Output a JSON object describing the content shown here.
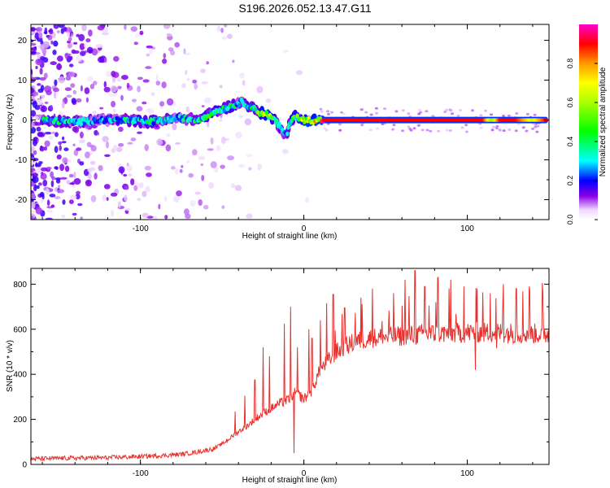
{
  "title": "S196.2026.052.13.47.G11",
  "chart_data": [
    {
      "type": "heatmap",
      "xlabel": "Height of straight line (km)",
      "ylabel": "Frequency (Hz)",
      "xlim": [
        -167,
        150
      ],
      "ylim": [
        -25,
        24
      ],
      "xticks": [
        -100,
        0,
        100
      ],
      "yticks": [
        -20,
        -10,
        0,
        10,
        20
      ],
      "colorbar": {
        "label": "Normalized spectral amplitude",
        "range": [
          0,
          1
        ],
        "ticks": [
          "0.0",
          "0.2",
          "0.4",
          "0.6",
          "0.8"
        ],
        "tick_values": [
          0,
          0.2,
          0.4,
          0.6,
          0.8
        ]
      },
      "ridge": [
        {
          "x": -160,
          "f": 0.0,
          "a": 0.35
        },
        {
          "x": -140,
          "f": -0.5,
          "a": 0.3
        },
        {
          "x": -125,
          "f": 0.0,
          "a": 0.25
        },
        {
          "x": -110,
          "f": 0.0,
          "a": 0.3
        },
        {
          "x": -95,
          "f": -0.5,
          "a": 0.35
        },
        {
          "x": -85,
          "f": 0.0,
          "a": 0.3
        },
        {
          "x": -75,
          "f": 0.5,
          "a": 0.3
        },
        {
          "x": -65,
          "f": 0.0,
          "a": 0.35
        },
        {
          "x": -55,
          "f": 2.0,
          "a": 0.4
        },
        {
          "x": -45,
          "f": 3.5,
          "a": 0.35
        },
        {
          "x": -38,
          "f": 4.5,
          "a": 0.3
        },
        {
          "x": -33,
          "f": 3.5,
          "a": 0.35
        },
        {
          "x": -28,
          "f": 2.0,
          "a": 0.45
        },
        {
          "x": -23,
          "f": 1.5,
          "a": 0.55
        },
        {
          "x": -18,
          "f": 0.0,
          "a": 0.45
        },
        {
          "x": -14,
          "f": -2.0,
          "a": 0.3
        },
        {
          "x": -11,
          "f": -4.0,
          "a": 0.25
        },
        {
          "x": -8,
          "f": 0.0,
          "a": 0.35
        },
        {
          "x": -5,
          "f": 1.0,
          "a": 0.45
        },
        {
          "x": -2,
          "f": 0.0,
          "a": 0.55
        },
        {
          "x": 3,
          "f": 0.0,
          "a": 0.65
        },
        {
          "x": 8,
          "f": 0.0,
          "a": 0.75
        },
        {
          "x": 12,
          "f": 0.0,
          "a": 0.9
        },
        {
          "x": 110,
          "f": 0.0,
          "a": 0.9
        },
        {
          "x": 115,
          "f": 0.0,
          "a": 0.55
        },
        {
          "x": 120,
          "f": 0.0,
          "a": 0.9
        },
        {
          "x": 130,
          "f": 0.0,
          "a": 0.9
        },
        {
          "x": 140,
          "f": 0.0,
          "a": 0.65
        },
        {
          "x": 148,
          "f": 0.0,
          "a": 0.9
        }
      ]
    },
    {
      "type": "line",
      "xlabel": "Height of straight line (km)",
      "ylabel": "SNR (10 * v/v)",
      "xlim": [
        -167,
        150
      ],
      "ylim": [
        0,
        870
      ],
      "xticks": [
        -100,
        0,
        100
      ],
      "yticks": [
        0,
        200,
        400,
        600,
        800
      ],
      "color": "#e8302c",
      "series": [
        {
          "name": "SNR",
          "x": [
            -167,
            -140,
            -120,
            -100,
            -85,
            -75,
            -65,
            -55,
            -48,
            -42,
            -35,
            -28,
            -22,
            -15,
            -10,
            -5,
            0,
            5,
            10,
            20,
            30,
            40,
            60,
            80,
            100,
            120,
            140,
            150
          ],
          "y": [
            25,
            28,
            30,
            35,
            40,
            45,
            55,
            70,
            100,
            135,
            170,
            210,
            240,
            270,
            285,
            320,
            290,
            330,
            420,
            500,
            540,
            560,
            570,
            580,
            585,
            585,
            580,
            580
          ]
        }
      ],
      "spikes": [
        {
          "x": -42,
          "y": 235
        },
        {
          "x": -36,
          "y": 305
        },
        {
          "x": -30,
          "y": 375
        },
        {
          "x": -25,
          "y": 520
        },
        {
          "x": -21,
          "y": 480
        },
        {
          "x": -12,
          "y": 625
        },
        {
          "x": -8,
          "y": 700
        },
        {
          "x": -4,
          "y": 520
        },
        {
          "x": 3,
          "y": 600
        },
        {
          "x": 5,
          "y": 560
        },
        {
          "x": 10,
          "y": 640
        },
        {
          "x": 14,
          "y": 715
        },
        {
          "x": 18,
          "y": 755
        },
        {
          "x": 25,
          "y": 695
        },
        {
          "x": 35,
          "y": 740
        },
        {
          "x": 42,
          "y": 780
        },
        {
          "x": 48,
          "y": 800
        },
        {
          "x": 55,
          "y": 760
        },
        {
          "x": 62,
          "y": 820
        },
        {
          "x": 68,
          "y": 860
        },
        {
          "x": 74,
          "y": 790
        },
        {
          "x": 82,
          "y": 830
        },
        {
          "x": 90,
          "y": 820
        },
        {
          "x": 98,
          "y": 790
        },
        {
          "x": 106,
          "y": 780
        },
        {
          "x": 114,
          "y": 760
        },
        {
          "x": 122,
          "y": 800
        },
        {
          "x": 130,
          "y": 780
        },
        {
          "x": 138,
          "y": 790
        },
        {
          "x": 146,
          "y": 805
        }
      ],
      "dips": [
        {
          "x": -6,
          "y": 50
        },
        {
          "x": 105,
          "y": 420
        },
        {
          "x": 118,
          "y": 515
        }
      ]
    }
  ]
}
